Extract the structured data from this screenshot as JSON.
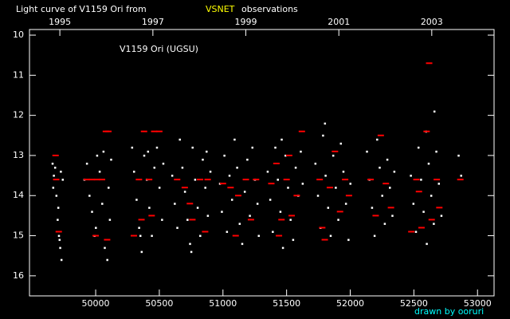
{
  "chart_data": {
    "type": "scatter",
    "title": "Light curve of V1159 Ori from",
    "title_highlight": "VSNET",
    "title_end": "observations",
    "annotation": "V1159 Ori (UGSU)",
    "credit": "drawn by ooruri",
    "xlim": [
      49480,
      53130
    ],
    "xticks": [
      50000,
      50500,
      51000,
      51500,
      52000,
      52500,
      53000
    ],
    "x2ticks": [
      {
        "value": 49718.5,
        "label": "1995"
      },
      {
        "value": 50449.5,
        "label": "1997"
      },
      {
        "value": 51179.5,
        "label": "1999"
      },
      {
        "value": 51910.5,
        "label": "2001"
      },
      {
        "value": 52640.5,
        "label": "2003"
      }
    ],
    "ylim": [
      9.86,
      16.5
    ],
    "yticks": [
      10,
      11,
      12,
      13,
      14,
      15,
      16
    ],
    "y_inverted": true,
    "series": [
      {
        "color": "#ffffff",
        "marker": "dot",
        "x": [
          49660,
          49670,
          49680,
          49690,
          49700,
          49710,
          49720,
          49730,
          49665,
          49705,
          49715,
          49725,
          49740,
          49910,
          49930,
          49950,
          49970,
          49990,
          50010,
          50030,
          50050,
          50070,
          50090,
          50100,
          50110,
          50120,
          50060,
          50000,
          50285,
          50300,
          50320,
          50340,
          50360,
          50380,
          50400,
          50420,
          50440,
          50460,
          50480,
          50500,
          50520,
          50530,
          50350,
          50410,
          50600,
          50620,
          50640,
          50660,
          50680,
          50700,
          50720,
          50740,
          50760,
          50780,
          50800,
          50820,
          50840,
          50860,
          50880,
          50900,
          50750,
          50870,
          50975,
          50990,
          51010,
          51030,
          51050,
          51070,
          51090,
          51110,
          51130,
          51150,
          51170,
          51190,
          51210,
          51230,
          51250,
          51270,
          51280,
          51350,
          51370,
          51390,
          51410,
          51430,
          51450,
          51470,
          51490,
          51510,
          51530,
          51550,
          51570,
          51590,
          51610,
          51625,
          51460,
          51725,
          51745,
          51765,
          51785,
          51805,
          51825,
          51845,
          51865,
          51885,
          51905,
          51925,
          51945,
          51965,
          51985,
          52000,
          51800,
          52130,
          52150,
          52170,
          52190,
          52210,
          52230,
          52250,
          52270,
          52290,
          52310,
          52330,
          52345,
          52475,
          52495,
          52515,
          52535,
          52555,
          52575,
          52595,
          52615,
          52635,
          52655,
          52675,
          52695,
          52715,
          52600,
          52660,
          52850,
          52870
        ],
        "values": [
          13.2,
          13.5,
          13.3,
          14.0,
          14.6,
          15.0,
          15.3,
          15.6,
          13.8,
          14.3,
          15.1,
          13.4,
          13.6,
          13.6,
          13.2,
          14.0,
          14.4,
          15.0,
          13.0,
          13.4,
          14.2,
          15.3,
          15.6,
          13.8,
          14.6,
          13.1,
          12.9,
          14.8,
          12.8,
          13.4,
          14.1,
          14.8,
          15.4,
          13.0,
          13.6,
          14.3,
          15.0,
          13.3,
          12.8,
          13.8,
          14.6,
          13.2,
          15.0,
          12.9,
          13.5,
          14.2,
          14.8,
          12.6,
          13.3,
          13.9,
          14.6,
          15.2,
          12.8,
          13.6,
          14.3,
          15.0,
          13.1,
          13.8,
          14.5,
          13.4,
          15.4,
          12.9,
          13.7,
          14.4,
          13.0,
          14.9,
          13.5,
          14.1,
          12.6,
          13.3,
          14.7,
          15.2,
          13.9,
          13.1,
          14.5,
          12.8,
          13.6,
          14.2,
          15.0,
          13.4,
          14.1,
          14.9,
          12.8,
          13.6,
          14.4,
          15.3,
          13.0,
          13.8,
          14.6,
          15.1,
          13.3,
          14.0,
          12.9,
          13.7,
          12.6,
          13.2,
          14.0,
          14.8,
          12.5,
          13.5,
          14.3,
          15.0,
          13.0,
          13.8,
          14.6,
          12.7,
          13.4,
          14.2,
          15.1,
          13.7,
          12.2,
          12.9,
          13.6,
          14.3,
          15.0,
          12.6,
          13.3,
          14.0,
          14.7,
          13.1,
          13.8,
          14.5,
          13.4,
          13.5,
          14.2,
          14.9,
          12.8,
          13.6,
          14.4,
          12.4,
          13.2,
          14.0,
          14.7,
          12.9,
          13.7,
          14.5,
          15.2,
          11.9,
          13.0,
          13.5
        ]
      },
      {
        "color": "#ff0000",
        "marker": "dash",
        "x": [
          49690,
          49710,
          49685,
          49930,
          49970,
          50010,
          50050,
          50080,
          50100,
          50000,
          50090,
          50340,
          50360,
          50380,
          50420,
          50460,
          50500,
          50300,
          50440,
          50640,
          50700,
          50760,
          50820,
          50860,
          50880,
          50740,
          51000,
          51060,
          51120,
          51180,
          51220,
          51260,
          51100,
          51380,
          51420,
          51460,
          51500,
          51540,
          51580,
          51620,
          51440,
          51520,
          51760,
          51800,
          51840,
          51880,
          51920,
          51960,
          51990,
          51780,
          52160,
          52200,
          52240,
          52280,
          52320,
          52480,
          52520,
          52560,
          52600,
          52620,
          52640,
          52680,
          52700,
          52540,
          52865
        ],
        "values": [
          13.6,
          14.9,
          13.0,
          13.6,
          13.6,
          13.6,
          13.6,
          12.4,
          12.4,
          15.0,
          15.1,
          13.6,
          14.6,
          12.4,
          13.6,
          12.4,
          12.4,
          15.0,
          14.5,
          13.6,
          13.8,
          14.6,
          13.6,
          14.9,
          13.6,
          14.2,
          13.7,
          13.8,
          14.0,
          13.6,
          14.6,
          13.6,
          15.0,
          13.7,
          13.2,
          14.6,
          13.6,
          14.5,
          14.0,
          12.4,
          15.0,
          13.0,
          13.6,
          15.1,
          13.8,
          12.9,
          14.4,
          13.6,
          14.0,
          14.8,
          13.6,
          14.5,
          12.5,
          13.7,
          14.3,
          14.9,
          13.6,
          14.8,
          12.4,
          10.7,
          14.6,
          13.6,
          14.3,
          13.9,
          13.6
        ]
      }
    ]
  }
}
